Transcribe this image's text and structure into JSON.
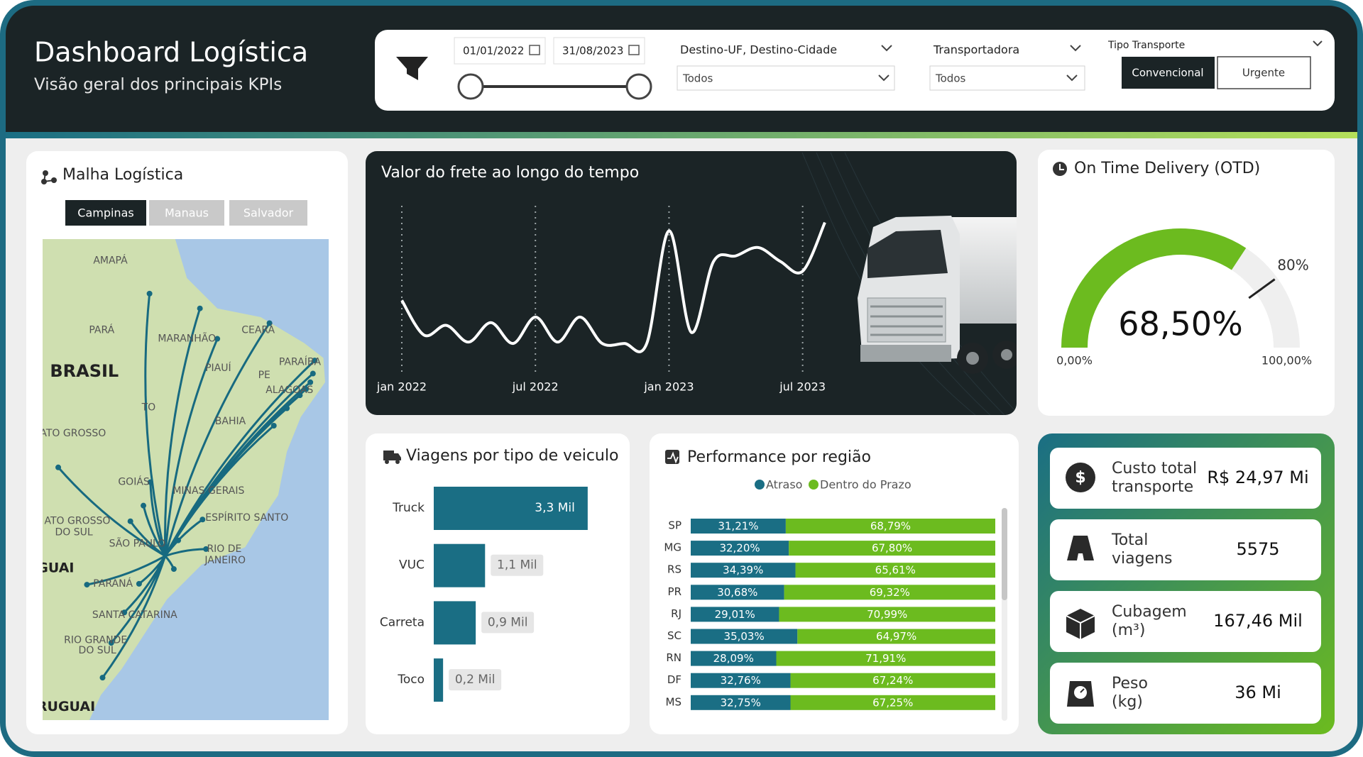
{
  "header": {
    "title": "Dashboard Logística",
    "subtitle": "Visão geral dos principais KPIs"
  },
  "filters": {
    "date_start": "01/01/2022",
    "date_end": "31/08/2023",
    "destino": {
      "label": "Destino-UF, Destino-Cidade",
      "value": "Todos"
    },
    "transportadora": {
      "label": "Transportadora",
      "value": "Todos"
    },
    "tipo_transporte": {
      "label": "Tipo Transporte",
      "options": [
        "Convencional",
        "Urgente"
      ]
    }
  },
  "map": {
    "title": "Malha Logística",
    "buttons": [
      "Campinas",
      "Manaus",
      "Salvador"
    ],
    "labels": [
      "AMAPÁ",
      "PARÁ",
      "MARANHÃO",
      "CEARÁ",
      "BRASIL",
      "PIAUÍ",
      "PARAÍBA",
      "PE",
      "ALAGOAS",
      "TO",
      "BAHIA",
      "ATO GROSSO",
      "GOIÁS",
      "MINAS GERAIS",
      "ESPÍRITO SANTO",
      "ATO GROSSO",
      "DO SUL",
      "SÃO PAULO",
      "RIO DE",
      "JANEIRO",
      "GUAI",
      "PARANÁ",
      "SANTA CATARINA",
      "RIO GRANDE",
      "DO SUL",
      "RUGUAI"
    ]
  },
  "kpis": [
    {
      "label": [
        "Custo total",
        "transporte"
      ],
      "value": "R$ 24,97 Mi"
    },
    {
      "label": [
        "Total",
        "viagens"
      ],
      "value": 5575
    },
    {
      "label": [
        "Cubagem",
        "(m³)"
      ],
      "value": "167,46 Mil"
    },
    {
      "label": [
        "Peso",
        "(kg)"
      ],
      "value": "36 Mi"
    }
  ],
  "chart_data": [
    {
      "type": "line",
      "title": "Valor do frete ao longo do tempo",
      "x": [
        "2022-01",
        "2022-02",
        "2022-03",
        "2022-04",
        "2022-05",
        "2022-06",
        "2022-07",
        "2022-08",
        "2022-09",
        "2022-10",
        "2022-11",
        "2022-12",
        "2023-01",
        "2023-02",
        "2023-03",
        "2023-04",
        "2023-05",
        "2023-06",
        "2023-07",
        "2023-08"
      ],
      "values": [
        34,
        9,
        16,
        4,
        18,
        3,
        22,
        4,
        22,
        3,
        3,
        3,
        84,
        11,
        62,
        66,
        72,
        62,
        55,
        90
      ],
      "xlim": [
        "2022-01",
        "2023-08"
      ],
      "ylim": [
        0,
        100
      ],
      "xticks": [
        {
          "value": "2022-01",
          "label": "jan 2022"
        },
        {
          "value": "2022-07",
          "label": "jul 2022"
        },
        {
          "value": "2023-01",
          "label": "jan 2023"
        },
        {
          "value": "2023-07",
          "label": "jul 2023"
        }
      ],
      "color": "#ffffff",
      "grid": true
    },
    {
      "type": "gauge",
      "title": "On Time Delivery (OTD)",
      "values": [
        68.5
      ],
      "value_labels": [
        "68,50%"
      ],
      "ylim": [
        0,
        100
      ],
      "yticks": [
        {
          "value": 0,
          "label": "0,00%"
        },
        {
          "value": 100,
          "label": "100,00%"
        }
      ],
      "target": {
        "value": 80,
        "label": "80%"
      },
      "color": "#6cbb1f"
    },
    {
      "type": "bar",
      "title": "Viagens por tipo de veiculo",
      "categories": [
        "Truck",
        "VUC",
        "Carreta",
        "Toco"
      ],
      "values": [
        3300,
        1100,
        900,
        200
      ],
      "value_labels": [
        "3,3 Mil",
        "1,1 Mil",
        "0,9 Mil",
        "0,2 Mil"
      ],
      "xlim": [
        0,
        3500
      ],
      "color": "#1a6e84"
    },
    {
      "type": "stacked_bar",
      "title": "Performance por região",
      "categories": [
        "SP",
        "MG",
        "RS",
        "PR",
        "RJ",
        "SC",
        "RN",
        "DF",
        "MS"
      ],
      "series": [
        {
          "name": "Atraso",
          "color": "#1a6e84",
          "values": [
            31.21,
            32.2,
            34.39,
            30.68,
            29.01,
            35.03,
            28.09,
            32.76,
            32.75
          ],
          "value_labels": [
            "31,21%",
            "32,20%",
            "34,39%",
            "30,68%",
            "29,01%",
            "35,03%",
            "28,09%",
            "32,76%",
            "32,75%"
          ]
        },
        {
          "name": "Dentro do Prazo",
          "color": "#6cbb1f",
          "values": [
            68.79,
            67.8,
            65.61,
            69.32,
            70.99,
            64.97,
            71.91,
            67.24,
            67.25
          ],
          "value_labels": [
            "68,79%",
            "67,80%",
            "65,61%",
            "69,32%",
            "70,99%",
            "64,97%",
            "71,91%",
            "67,24%",
            "67,25%"
          ]
        }
      ],
      "xlim": [
        0,
        100
      ]
    }
  ]
}
